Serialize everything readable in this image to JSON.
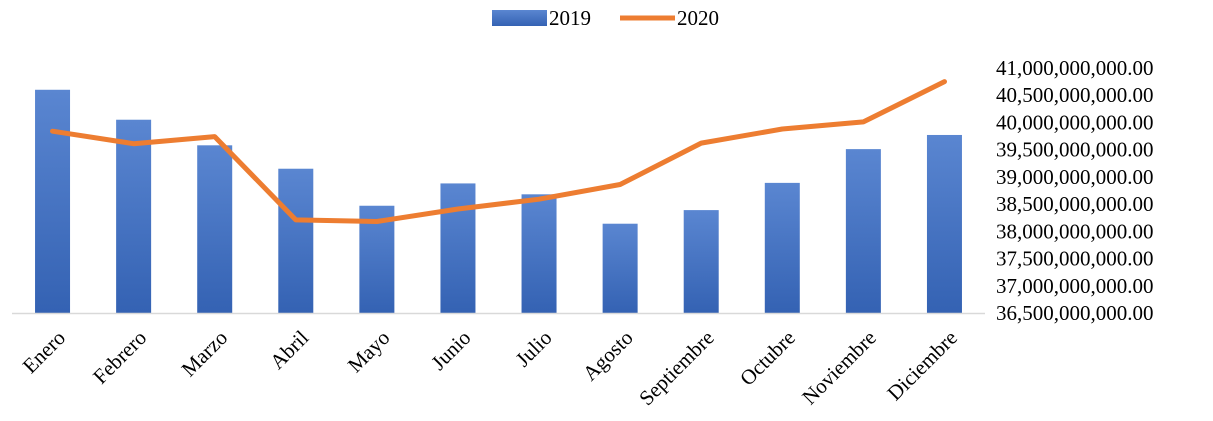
{
  "chart_data": {
    "type": "bar",
    "categories": [
      "Enero",
      "Febrero",
      "Marzo",
      "Abril",
      "Mayo",
      "Junio",
      "Julio",
      "Agosto",
      "Septiembre",
      "Octubre",
      "Noviembre",
      "Diciembre"
    ],
    "series": [
      {
        "name": "2019",
        "type": "bar",
        "color": "#4472C4",
        "values": [
          40600000000,
          40050000000,
          39580000000,
          39150000000,
          38470000000,
          38880000000,
          38680000000,
          38140000000,
          38390000000,
          38890000000,
          39510000000,
          39770000000
        ]
      },
      {
        "name": "2020",
        "type": "line",
        "color": "#ED7D31",
        "values": [
          39840000000,
          39610000000,
          39740000000,
          38210000000,
          38180000000,
          38410000000,
          38590000000,
          38860000000,
          39620000000,
          39880000000,
          40010000000,
          40750000000
        ]
      }
    ],
    "title": "",
    "xlabel": "",
    "ylabel": "",
    "ylim": [
      36500000000,
      41000000000
    ],
    "yticks": [
      "36,500,000,000.00",
      "37,000,000,000.00",
      "37,500,000,000.00",
      "38,000,000,000.00",
      "38,500,000,000.00",
      "39,000,000,000.00",
      "39,500,000,000.00",
      "40,000,000,000.00",
      "40,500,000,000.00",
      "41,000,000,000.00"
    ],
    "y_axis_side": "right",
    "grid": false,
    "legend_position": "top-center"
  }
}
